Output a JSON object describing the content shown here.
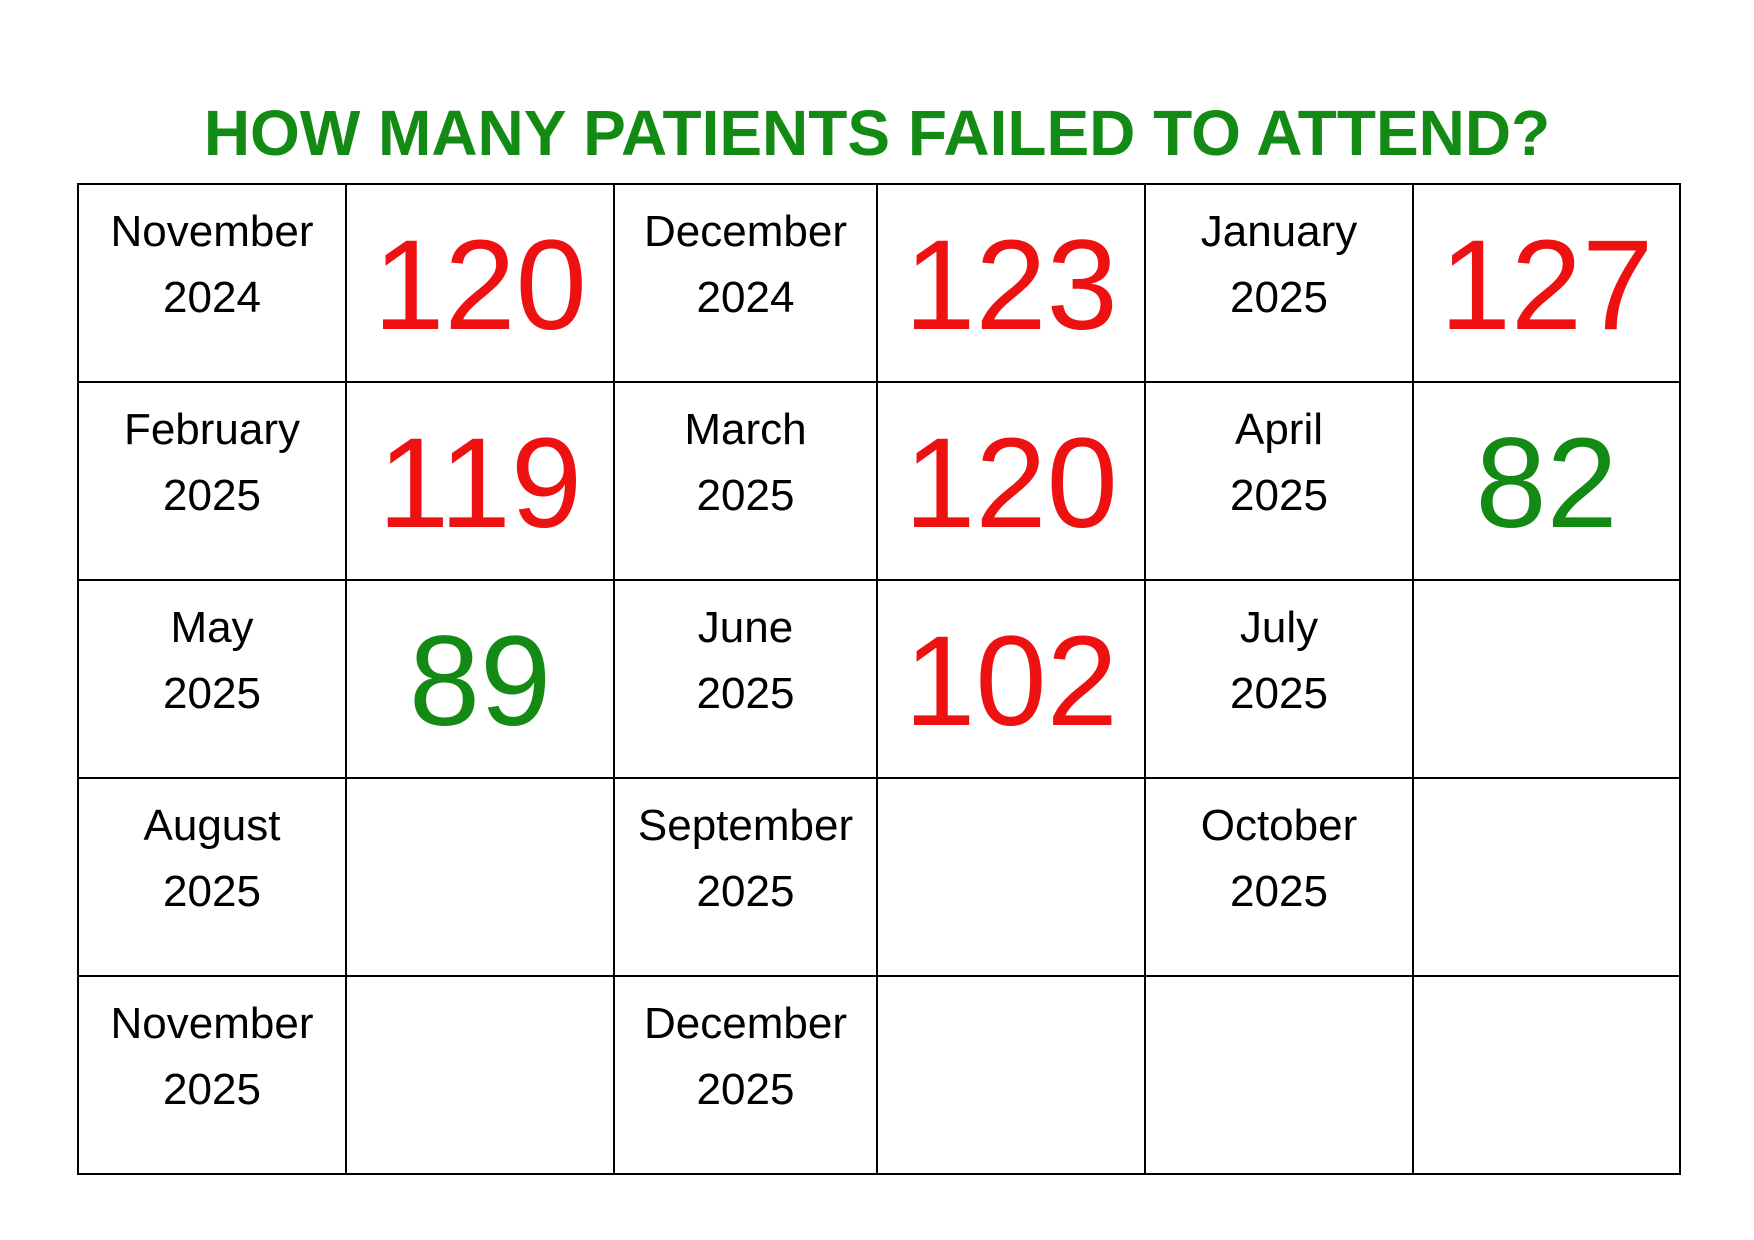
{
  "title": "HOW MANY PATIENTS FAILED TO ATTEND?",
  "colors": {
    "title": "#138a13",
    "high": "#ee1111",
    "low": "#138a13",
    "grid": "#000000"
  },
  "rows": [
    [
      {
        "month": "November",
        "year": "2024",
        "value": "120",
        "status": "high"
      },
      {
        "month": "December",
        "year": "2024",
        "value": "123",
        "status": "high"
      },
      {
        "month": "January",
        "year": "2025",
        "value": "127",
        "status": "high"
      }
    ],
    [
      {
        "month": "February",
        "year": "2025",
        "value": "119",
        "status": "high"
      },
      {
        "month": "March",
        "year": "2025",
        "value": "120",
        "status": "high"
      },
      {
        "month": "April",
        "year": "2025",
        "value": "82",
        "status": "low"
      }
    ],
    [
      {
        "month": "May",
        "year": "2025",
        "value": "89",
        "status": "low"
      },
      {
        "month": "June",
        "year": "2025",
        "value": "102",
        "status": "high"
      },
      {
        "month": "July",
        "year": "2025",
        "value": "",
        "status": ""
      }
    ],
    [
      {
        "month": "August",
        "year": "2025",
        "value": "",
        "status": ""
      },
      {
        "month": "September",
        "year": "2025",
        "value": "",
        "status": ""
      },
      {
        "month": "October",
        "year": "2025",
        "value": "",
        "status": ""
      }
    ],
    [
      {
        "month": "November",
        "year": "2025",
        "value": "",
        "status": ""
      },
      {
        "month": "December",
        "year": "2025",
        "value": "",
        "status": ""
      },
      {
        "month": "",
        "year": "",
        "value": "",
        "status": ""
      }
    ]
  ]
}
